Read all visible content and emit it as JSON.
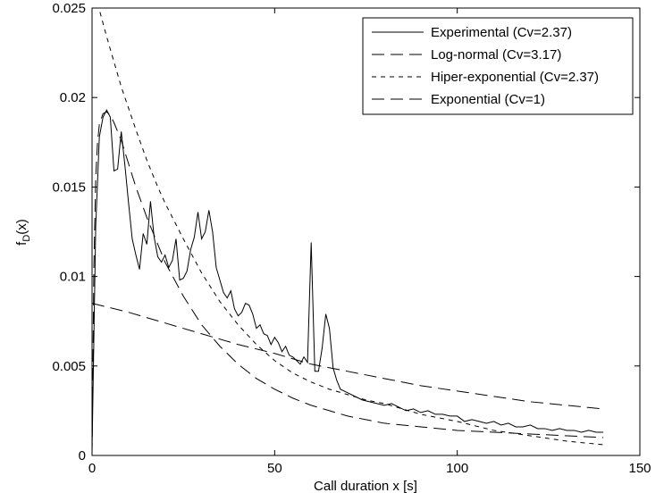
{
  "chart_data": {
    "type": "line",
    "title": "",
    "xlabel": "Call duration x [s]",
    "ylabel_main": "f",
    "ylabel_sub": "D",
    "ylabel_tail": "(x)",
    "xlim": [
      0,
      150
    ],
    "ylim": [
      0,
      0.025
    ],
    "xticks": [
      0,
      50,
      100,
      150
    ],
    "xtick_labels": [
      "0",
      "50",
      "100",
      "150"
    ],
    "yticks": [
      0,
      0.005,
      0.01,
      0.015,
      0.02,
      0.025
    ],
    "ytick_labels": [
      "0",
      "0.005",
      "0.01",
      "0.015",
      "0.02",
      "0.025"
    ],
    "grid": false,
    "legend_position": "top-right",
    "series": [
      {
        "name": "Experimental (Cv=2.37)",
        "style": "solid",
        "x": [
          0,
          1,
          2,
          3,
          4,
          5,
          6,
          7,
          8,
          9,
          10,
          11,
          12,
          13,
          14,
          15,
          16,
          17,
          18,
          19,
          20,
          21,
          22,
          23,
          24,
          25,
          26,
          27,
          28,
          29,
          30,
          31,
          32,
          33,
          34,
          35,
          36,
          37,
          38,
          39,
          40,
          41,
          42,
          43,
          44,
          45,
          46,
          47,
          48,
          49,
          50,
          51,
          52,
          53,
          54,
          55,
          56,
          57,
          58,
          59,
          60,
          61,
          62,
          63,
          64,
          65,
          66,
          67,
          68,
          70,
          72,
          74,
          76,
          78,
          80,
          82,
          84,
          86,
          88,
          90,
          92,
          94,
          96,
          98,
          100,
          102,
          104,
          106,
          108,
          110,
          112,
          114,
          116,
          118,
          120,
          122,
          124,
          126,
          128,
          130,
          132,
          134,
          136,
          138,
          140
        ],
        "y": [
          0.0003,
          0.0128,
          0.0178,
          0.0189,
          0.0193,
          0.0189,
          0.0159,
          0.016,
          0.0181,
          0.0162,
          0.0141,
          0.0121,
          0.0112,
          0.0104,
          0.0124,
          0.0118,
          0.0142,
          0.0122,
          0.0111,
          0.0108,
          0.0112,
          0.0105,
          0.0109,
          0.0121,
          0.0098,
          0.0099,
          0.0103,
          0.0115,
          0.0122,
          0.0136,
          0.0121,
          0.0125,
          0.0137,
          0.0125,
          0.0105,
          0.0098,
          0.0091,
          0.0088,
          0.0092,
          0.0082,
          0.0078,
          0.008,
          0.0085,
          0.0084,
          0.0079,
          0.0071,
          0.0073,
          0.0068,
          0.0067,
          0.0062,
          0.0066,
          0.0063,
          0.0058,
          0.0061,
          0.0056,
          0.0055,
          0.0053,
          0.0051,
          0.0055,
          0.0052,
          0.0119,
          0.0047,
          0.0047,
          0.006,
          0.0079,
          0.0071,
          0.0049,
          0.0042,
          0.0037,
          0.0035,
          0.0033,
          0.0031,
          0.003,
          0.0029,
          0.0028,
          0.0029,
          0.0027,
          0.0025,
          0.0026,
          0.0024,
          0.0025,
          0.0023,
          0.0023,
          0.0022,
          0.0022,
          0.0019,
          0.002,
          0.0019,
          0.0018,
          0.0019,
          0.0017,
          0.0018,
          0.0016,
          0.0016,
          0.0017,
          0.0015,
          0.0015,
          0.0014,
          0.0015,
          0.0014,
          0.0014,
          0.0013,
          0.0014,
          0.0013,
          0.0013
        ]
      },
      {
        "name": "Log-normal (Cv=3.17)",
        "style": "longdash",
        "x": [
          0,
          0.5,
          1,
          1.5,
          2,
          3,
          4,
          5,
          6,
          8,
          10,
          12,
          15,
          18,
          20,
          25,
          30,
          35,
          40,
          45,
          50,
          55,
          60,
          65,
          70,
          75,
          80,
          90,
          100,
          110,
          120,
          130,
          140
        ],
        "y": [
          0.0,
          0.0105,
          0.0155,
          0.0175,
          0.0185,
          0.0191,
          0.0192,
          0.019,
          0.0186,
          0.0176,
          0.0163,
          0.015,
          0.0133,
          0.0118,
          0.0108,
          0.0089,
          0.0073,
          0.0061,
          0.0051,
          0.0043,
          0.0037,
          0.0032,
          0.0028,
          0.0025,
          0.0022,
          0.002,
          0.0018,
          0.0016,
          0.0014,
          0.0013,
          0.0012,
          0.0011,
          0.001
        ]
      },
      {
        "name": "Hiper-exponential (Cv=2.37)",
        "style": "shortdash",
        "x": [
          0,
          1,
          2,
          4,
          6,
          8,
          10,
          12,
          15,
          18,
          20,
          25,
          30,
          35,
          40,
          45,
          50,
          55,
          60,
          65,
          70,
          75,
          80,
          90,
          100,
          110,
          120,
          130,
          140
        ],
        "y": [
          0.0262,
          0.0257,
          0.0249,
          0.0234,
          0.022,
          0.0206,
          0.0194,
          0.0182,
          0.0165,
          0.015,
          0.0141,
          0.0121,
          0.0102,
          0.0086,
          0.0073,
          0.0062,
          0.0053,
          0.0046,
          0.0041,
          0.0037,
          0.0034,
          0.0031,
          0.0029,
          0.0023,
          0.0019,
          0.0014,
          0.0011,
          0.0008,
          0.0006
        ]
      },
      {
        "name": "Exponential (Cv=1)",
        "style": "longdash",
        "x": [
          0,
          10,
          20,
          30,
          40,
          50,
          60,
          70,
          80,
          90,
          100,
          110,
          120,
          130,
          140
        ],
        "y": [
          0.0085,
          0.008,
          0.0074,
          0.0068,
          0.0062,
          0.0057,
          0.0051,
          0.0047,
          0.0043,
          0.0039,
          0.0036,
          0.0033,
          0.003,
          0.0028,
          0.0026
        ]
      }
    ]
  }
}
